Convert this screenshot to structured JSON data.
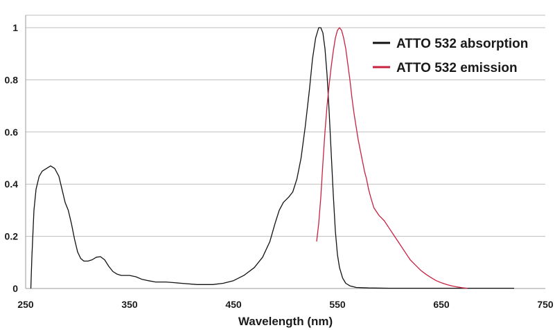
{
  "chart_data": {
    "type": "line",
    "title": "",
    "xlabel": "Wavelength (nm)",
    "ylabel": "",
    "xlim": [
      250,
      750
    ],
    "ylim": [
      0,
      1.05
    ],
    "xticks": [
      250,
      350,
      450,
      550,
      650,
      750
    ],
    "xtick_labels": [
      "250",
      "350",
      "450",
      "550",
      "650",
      "750"
    ],
    "yticks": [
      0,
      0.2,
      0.4,
      0.6,
      0.8,
      1
    ],
    "ytick_labels": [
      "0",
      "0.2",
      "0.4",
      "0.6",
      "0.8",
      "1"
    ],
    "grid": "horizontal",
    "legend_position": "top-right",
    "series": [
      {
        "name": "ATTO 532 absorption",
        "color": "#111111",
        "points": [
          [
            255,
            0.0
          ],
          [
            256,
            0.12
          ],
          [
            258,
            0.3
          ],
          [
            260,
            0.38
          ],
          [
            263,
            0.43
          ],
          [
            266,
            0.45
          ],
          [
            270,
            0.46
          ],
          [
            274,
            0.47
          ],
          [
            278,
            0.46
          ],
          [
            282,
            0.43
          ],
          [
            285,
            0.38
          ],
          [
            288,
            0.33
          ],
          [
            291,
            0.3
          ],
          [
            294,
            0.25
          ],
          [
            297,
            0.19
          ],
          [
            300,
            0.14
          ],
          [
            303,
            0.115
          ],
          [
            306,
            0.105
          ],
          [
            310,
            0.105
          ],
          [
            314,
            0.11
          ],
          [
            318,
            0.12
          ],
          [
            322,
            0.122
          ],
          [
            326,
            0.11
          ],
          [
            330,
            0.085
          ],
          [
            334,
            0.065
          ],
          [
            338,
            0.055
          ],
          [
            342,
            0.05
          ],
          [
            346,
            0.05
          ],
          [
            350,
            0.05
          ],
          [
            356,
            0.045
          ],
          [
            362,
            0.035
          ],
          [
            368,
            0.03
          ],
          [
            375,
            0.025
          ],
          [
            385,
            0.025
          ],
          [
            400,
            0.02
          ],
          [
            415,
            0.015
          ],
          [
            430,
            0.015
          ],
          [
            440,
            0.02
          ],
          [
            450,
            0.03
          ],
          [
            460,
            0.05
          ],
          [
            470,
            0.08
          ],
          [
            478,
            0.12
          ],
          [
            485,
            0.18
          ],
          [
            490,
            0.25
          ],
          [
            494,
            0.3
          ],
          [
            498,
            0.33
          ],
          [
            503,
            0.35
          ],
          [
            507,
            0.37
          ],
          [
            511,
            0.42
          ],
          [
            515,
            0.5
          ],
          [
            519,
            0.62
          ],
          [
            523,
            0.76
          ],
          [
            526,
            0.88
          ],
          [
            529,
            0.96
          ],
          [
            532,
            1.0
          ],
          [
            534,
            1.0
          ],
          [
            536,
            0.98
          ],
          [
            538,
            0.92
          ],
          [
            540,
            0.82
          ],
          [
            542,
            0.68
          ],
          [
            544,
            0.52
          ],
          [
            546,
            0.36
          ],
          [
            548,
            0.22
          ],
          [
            550,
            0.13
          ],
          [
            552,
            0.08
          ],
          [
            555,
            0.04
          ],
          [
            558,
            0.02
          ],
          [
            562,
            0.01
          ],
          [
            568,
            0.004
          ],
          [
            580,
            0.002
          ],
          [
            600,
            0.001
          ],
          [
            640,
            0.001
          ],
          [
            680,
            0.001
          ],
          [
            720,
            0.001
          ]
        ]
      },
      {
        "name": "ATTO 532 emission",
        "color": "#c8203f",
        "points": [
          [
            530,
            0.18
          ],
          [
            532,
            0.25
          ],
          [
            534,
            0.35
          ],
          [
            536,
            0.48
          ],
          [
            538,
            0.6
          ],
          [
            540,
            0.7
          ],
          [
            542,
            0.78
          ],
          [
            544,
            0.85
          ],
          [
            546,
            0.91
          ],
          [
            548,
            0.96
          ],
          [
            550,
            0.99
          ],
          [
            552,
            1.0
          ],
          [
            554,
            0.99
          ],
          [
            556,
            0.96
          ],
          [
            558,
            0.92
          ],
          [
            560,
            0.86
          ],
          [
            562,
            0.8
          ],
          [
            564,
            0.73
          ],
          [
            566,
            0.67
          ],
          [
            568,
            0.62
          ],
          [
            570,
            0.57
          ],
          [
            572,
            0.53
          ],
          [
            574,
            0.49
          ],
          [
            576,
            0.45
          ],
          [
            578,
            0.42
          ],
          [
            580,
            0.38
          ],
          [
            582,
            0.35
          ],
          [
            585,
            0.31
          ],
          [
            590,
            0.28
          ],
          [
            595,
            0.26
          ],
          [
            600,
            0.23
          ],
          [
            605,
            0.2
          ],
          [
            610,
            0.17
          ],
          [
            615,
            0.14
          ],
          [
            620,
            0.11
          ],
          [
            625,
            0.09
          ],
          [
            630,
            0.07
          ],
          [
            635,
            0.055
          ],
          [
            640,
            0.042
          ],
          [
            645,
            0.03
          ],
          [
            650,
            0.022
          ],
          [
            655,
            0.015
          ],
          [
            660,
            0.01
          ],
          [
            665,
            0.006
          ],
          [
            670,
            0.003
          ],
          [
            675,
            0.001
          ]
        ]
      }
    ]
  }
}
